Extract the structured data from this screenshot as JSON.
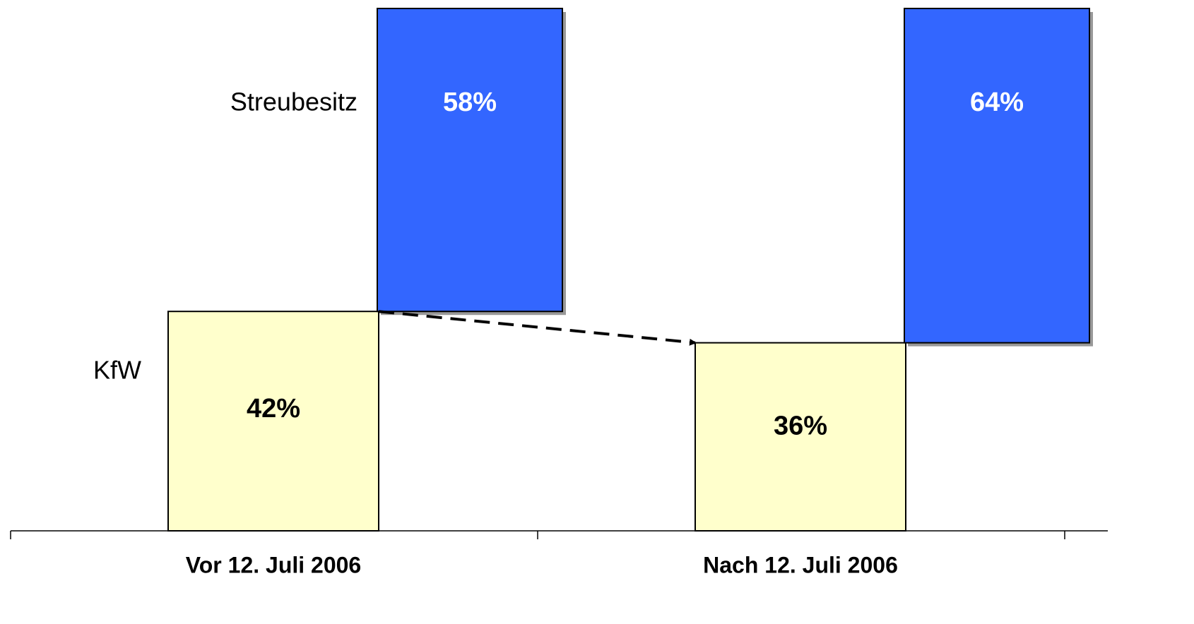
{
  "chart_data": {
    "type": "waterfall",
    "categories": [
      "Vor 12. Juli 2006",
      "Nach 12. Juli 2006"
    ],
    "series": [
      {
        "name": "KfW",
        "color": "#ffffcc",
        "values": [
          42,
          36
        ],
        "value_labels": [
          "42%",
          "36%"
        ]
      },
      {
        "name": "Streubesitz",
        "color": "#3366ff",
        "values": [
          58,
          64
        ],
        "value_labels": [
          "58%",
          "64%"
        ]
      }
    ],
    "ylim": [
      0,
      100
    ]
  }
}
